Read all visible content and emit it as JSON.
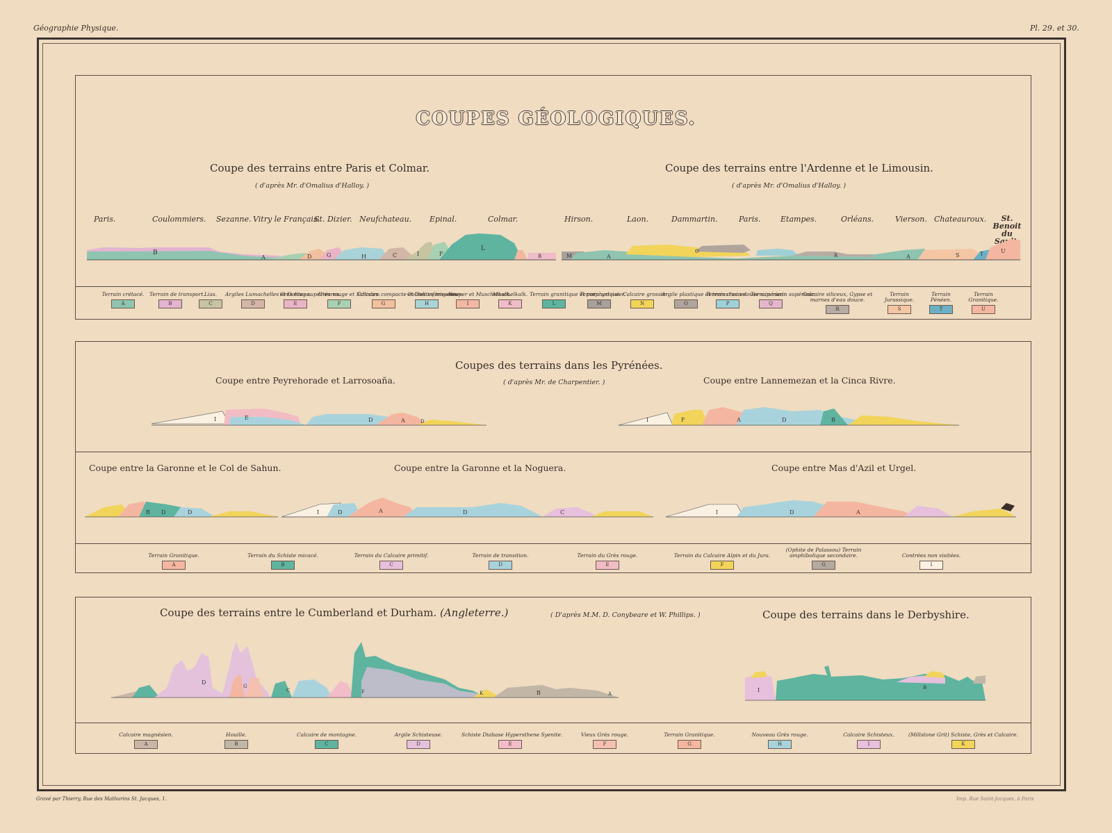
{
  "header": {
    "left": "Géographie Physique.",
    "right": "Pl. 29. et 30."
  },
  "title": "COUPES GÉOLOGIQUES.",
  "section1": {
    "left_title": "Coupe des terrains entre Paris et Colmar.",
    "left_source": "( d'après Mr. d'Omalius d'Halloy. )",
    "right_title": "Coupe des terrains entre l'Ardenne et le Limousin.",
    "right_source": "( d'après Mr. d'Omalius d'Halloy. )",
    "places_left": [
      "Paris.",
      "Coulommiers.",
      "Sezanne.",
      "Vitry le Français.",
      "St. Dizier.",
      "Neufchateau.",
      "Epinal.",
      "Colmar."
    ],
    "places_right": [
      "Hirson.",
      "Laon.",
      "Dammartin.",
      "Paris.",
      "Etampes.",
      "Orléans.",
      "Vierson.",
      "Chateauroux.",
      "St. Benoit du Sault."
    ],
    "legend": [
      {
        "label": "Terrain crétacé.",
        "letter": "A",
        "color": "#8fc4b0"
      },
      {
        "label": "Terrain de transport.",
        "letter": "B",
        "color": "#e3b3cf"
      },
      {
        "label": "Lias.",
        "letter": "C",
        "color": "#c7c4a2"
      },
      {
        "label": "Argiles Lumachelles et Oolites supérieures.",
        "letter": "D",
        "color": "#d2b6a6"
      },
      {
        "label": "Grès rouge.",
        "letter": "E",
        "color": "#eab4c6"
      },
      {
        "label": "Grès rouge et Schistes.",
        "letter": "F",
        "color": "#a8d0b2"
      },
      {
        "label": "Calcaire compacte et Oolites moyennes.",
        "letter": "G",
        "color": "#f2c09e"
      },
      {
        "label": "Oolites inférieures.",
        "letter": "H",
        "color": "#a9d3d8"
      },
      {
        "label": "Keuper et Muschelkalk.",
        "letter": "I",
        "color": "#f3b8a2"
      },
      {
        "label": "Muschelkalk.",
        "letter": "K",
        "color": "#f0bcc8"
      },
      {
        "label": "Terrain granitique et porphyrique.",
        "letter": "L",
        "color": "#5fb4a0"
      },
      {
        "label": "Terrain ardoisier.",
        "letter": "M",
        "color": "#a8a09a"
      },
      {
        "label": "Calcaire grossier.",
        "letter": "N",
        "color": "#f2d45a"
      },
      {
        "label": "Argile plastique et terres noires.",
        "letter": "O",
        "color": "#b0a49c"
      },
      {
        "label": "Terrain d'eau douce supérieur.",
        "letter": "P",
        "color": "#9fd0d8"
      },
      {
        "label": "Terrain marin supérieur.",
        "letter": "Q",
        "color": "#e4b6cc"
      },
      {
        "label": "Calcaire siliceux, Gypse et marnes d'eau douce.",
        "letter": "R",
        "color": "#b7aca4"
      },
      {
        "label": "Terrain Jurassique.",
        "letter": "S",
        "color": "#f4c6a4"
      },
      {
        "label": "Terrain Pénéen.",
        "letter": "T",
        "color": "#6bb0c4"
      },
      {
        "label": "Terrain Granitique.",
        "letter": "U",
        "color": "#f4b6a0"
      }
    ]
  },
  "section2": {
    "title": "Coupes des terrains dans les Pyrénées.",
    "source": "( d'après Mr. de Charpentier. )",
    "sub1": "Coupe entre Peyrehorade et Larrosoaña.",
    "sub2": "Coupe entre Lannemezan et la Cinca Rivre.",
    "sub3": "Coupe entre la Garonne et le Col de Sahun.",
    "sub4": "Coupe entre la Garonne et la Noguera.",
    "sub5": "Coupe entre Mas d'Azil et Urgel.",
    "legend": [
      {
        "label": "Terrain Granitique.",
        "letter": "A",
        "color": "#f4b6a0"
      },
      {
        "label": "Terrain du Schiste micacé.",
        "letter": "B",
        "color": "#5fb4a0"
      },
      {
        "label": "Terrain du Calcaire primitif.",
        "letter": "C",
        "color": "#e6c0dc"
      },
      {
        "label": "Terrain de transition.",
        "letter": "D",
        "color": "#a9d3dc"
      },
      {
        "label": "Terrain du Grès rouge.",
        "letter": "E",
        "color": "#f2bcc4"
      },
      {
        "label": "Terrain du Calcaire Alpin et du Jura.",
        "letter": "F",
        "color": "#f2d45a"
      },
      {
        "label": "(Ophite de Palassou) Terrain amphibolique secondaire.",
        "letter": "G",
        "color": "#b4aaa0"
      },
      {
        "label": "Contrées non visitées.",
        "letter": "I",
        "color": "#fbf1e2"
      }
    ]
  },
  "section3": {
    "left_title": "Coupe des terrains entre le Cumberland et Durham.",
    "left_paren": "(Angleterre.)",
    "source": "( D'après M.M. D. Conybeare et W. Phillips. )",
    "right_title": "Coupe des terrains dans le Derbyshire.",
    "legend": [
      {
        "label": "Calcaire magnésien.",
        "letter": "A",
        "color": "#c9b6a6"
      },
      {
        "label": "Houille.",
        "letter": "B",
        "color": "#c2b6a6"
      },
      {
        "label": "Calcaire de montagne.",
        "letter": "C",
        "color": "#5fb4a0"
      },
      {
        "label": "Argile Schisteuse.",
        "letter": "D",
        "color": "#e4c2dc"
      },
      {
        "label": "Schiste Diabase Hypersthene Syenite.",
        "letter": "E",
        "color": "#f2bcc8"
      },
      {
        "label": "Vieux Grès rouge.",
        "letter": "F",
        "color": "#f4c0b0"
      },
      {
        "label": "Terrain Granitique.",
        "letter": "G",
        "color": "#f4b6a0"
      },
      {
        "label": "Nouveau Grès rouge.",
        "letter": "H",
        "color": "#a9d3dc"
      },
      {
        "label": "Calcaire Schisteux.",
        "letter": "I",
        "color": "#e6c0dc"
      },
      {
        "label": "(Millstone Grit) Schiste, Grès et Calcaire.",
        "letter": "K",
        "color": "#f2d45a"
      }
    ]
  },
  "footer": {
    "left": "Gravé par Thierry, Rue des Mathurins St. Jacques, 1.",
    "right": "Imp. Rue Saint-Jacques, à Paris"
  }
}
